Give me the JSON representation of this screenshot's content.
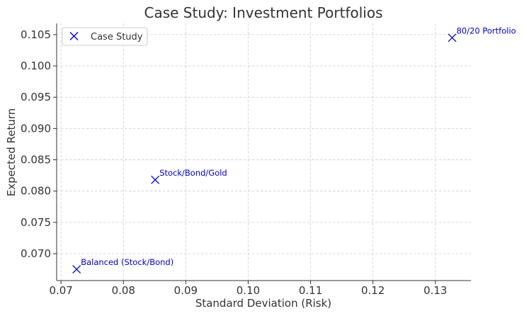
{
  "chart_data": {
    "type": "scatter",
    "title": "Case Study: Investment Portfolios",
    "xlabel": "Standard Deviation (Risk)",
    "ylabel": "Expected Return",
    "xlim": [
      0.0693,
      0.1357
    ],
    "ylim": [
      0.0657,
      0.1068
    ],
    "xticks": [
      0.07,
      0.08,
      0.09,
      0.1,
      0.11,
      0.12,
      0.13
    ],
    "xtick_labels": [
      "0.07",
      "0.08",
      "0.09",
      "0.10",
      "0.11",
      "0.12",
      "0.13"
    ],
    "yticks": [
      0.07,
      0.075,
      0.08,
      0.085,
      0.09,
      0.095,
      0.1,
      0.105
    ],
    "ytick_labels": [
      "0.070",
      "0.075",
      "0.080",
      "0.085",
      "0.090",
      "0.095",
      "0.100",
      "0.105"
    ],
    "grid": true,
    "legend": {
      "position": "top-left",
      "entries": [
        "Case Study"
      ]
    },
    "series": [
      {
        "name": "Case Study",
        "marker": "x",
        "color": "#0000cc",
        "points": [
          {
            "x": 0.0725,
            "y": 0.0675,
            "label": "Balanced (Stock/Bond)"
          },
          {
            "x": 0.0851,
            "y": 0.0818,
            "label": "Stock/Bond/Gold"
          },
          {
            "x": 0.1327,
            "y": 0.1045,
            "label": "80/20 Portfolio"
          }
        ]
      }
    ]
  }
}
